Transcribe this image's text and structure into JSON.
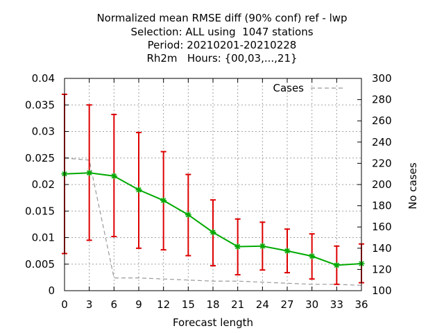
{
  "chart_data": {
    "type": "line",
    "title_lines": [
      "Normalized mean RMSE diff (90% conf) ref - lwp",
      "Selection: ALL using  1047 stations",
      "Period: 20210201-20210228",
      "Rh2m   Hours: {00,03,...,21}"
    ],
    "xlabel": "Forecast length",
    "ylabel": "",
    "y2label": "No cases",
    "x": [
      0,
      3,
      6,
      9,
      12,
      15,
      18,
      21,
      24,
      27,
      30,
      33,
      36
    ],
    "x_ticks": [
      "0",
      "3",
      "6",
      "9",
      "12",
      "15",
      "18",
      "21",
      "24",
      "27",
      "30",
      "33",
      "36"
    ],
    "xlim": [
      0,
      36
    ],
    "ylim": [
      0,
      0.04
    ],
    "y_ticks": [
      "0",
      "0.005",
      "0.01",
      "0.015",
      "0.02",
      "0.025",
      "0.03",
      "0.035",
      "0.04"
    ],
    "y2lim": [
      100,
      300
    ],
    "y2_ticks": [
      "100",
      "120",
      "140",
      "160",
      "180",
      "200",
      "220",
      "240",
      "260",
      "280",
      "300"
    ],
    "grid": true,
    "legend_position": "top-right",
    "series": [
      {
        "name": "",
        "axis": "left",
        "color": "#00aa00",
        "marker": "star",
        "values": [
          0.022,
          0.0222,
          0.0216,
          0.019,
          0.017,
          0.0143,
          0.011,
          0.0083,
          0.0084,
          0.0075,
          0.0065,
          0.0048,
          0.0051
        ],
        "error_low": [
          0.007,
          0.0095,
          0.0102,
          0.008,
          0.0077,
          0.0066,
          0.0047,
          0.003,
          0.0039,
          0.0034,
          0.0022,
          0.0012,
          0.0015
        ],
        "error_high": [
          0.037,
          0.035,
          0.0332,
          0.0298,
          0.0262,
          0.0219,
          0.0171,
          0.0135,
          0.0129,
          0.0116,
          0.0107,
          0.0084,
          0.0088
        ],
        "error_color": "#dd0000"
      },
      {
        "name": "Cases",
        "axis": "right",
        "color": "#999999",
        "dash": true,
        "values": [
          225,
          223,
          112,
          112,
          111,
          110,
          109,
          109,
          108,
          107,
          106,
          106,
          105
        ]
      }
    ]
  }
}
